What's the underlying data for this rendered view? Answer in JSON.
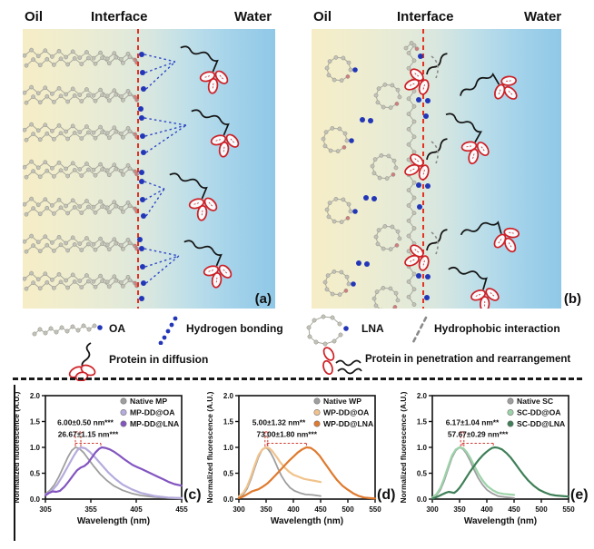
{
  "figure": {
    "panels": [
      {
        "label": "(a)",
        "regions": {
          "oil": "Oil",
          "interface": "Interface",
          "water": "Water"
        }
      },
      {
        "label": "(b)",
        "regions": {
          "oil": "Oil",
          "interface": "Interface",
          "water": "Water"
        }
      }
    ],
    "legend_a": [
      {
        "icon": "oa-molecule-icon",
        "label": "OA"
      },
      {
        "icon": "hydrogen-bonding-icon",
        "label": "Hydrogen bonding"
      },
      {
        "icon": "protein-diffusion-icon",
        "label": "Protein in diffusion"
      }
    ],
    "legend_b": [
      {
        "icon": "lna-molecule-icon",
        "label": "LNA"
      },
      {
        "icon": "hydrophobic-interaction-icon",
        "label": "Hydrophobic interaction"
      },
      {
        "icon": "protein-penetration-icon",
        "label": "Protein in penetration and rearrangement"
      }
    ],
    "colors": {
      "oil_bg": "#f6edc6",
      "water_bg": "#8fc8e7",
      "interface_line": "#e23222",
      "hydrogen_bond_blue": "#2336b8",
      "hydrophobic_gray": "#8a8a8a",
      "protein_red": "#ce2026",
      "molecule_gray": "#c2c2b8"
    }
  },
  "chart_data": [
    {
      "type": "line",
      "panel_label": "(c)",
      "xlabel": "Wavelength (nm)",
      "ylabel": "Normalized fluorescence (A.U.)",
      "xlim": [
        305,
        455
      ],
      "ylim": [
        0,
        2.0
      ],
      "xticks": [
        305,
        355,
        405,
        455
      ],
      "yticks": [
        "0.0",
        "0.5",
        "1.0",
        "1.5",
        "2.0"
      ],
      "legend_position": "top-right",
      "series": [
        {
          "name": "Native MP",
          "color": "#9e9e9e",
          "points": [
            [
              305,
              0.1
            ],
            [
              310,
              0.17
            ],
            [
              315,
              0.28
            ],
            [
              320,
              0.44
            ],
            [
              325,
              0.63
            ],
            [
              330,
              0.82
            ],
            [
              334,
              0.94
            ],
            [
              338,
              1.0
            ],
            [
              342,
              0.98
            ],
            [
              347,
              0.9
            ],
            [
              352,
              0.78
            ],
            [
              358,
              0.64
            ],
            [
              365,
              0.49
            ],
            [
              372,
              0.37
            ],
            [
              380,
              0.26
            ],
            [
              390,
              0.17
            ],
            [
              400,
              0.11
            ],
            [
              410,
              0.07
            ],
            [
              425,
              0.04
            ],
            [
              440,
              0.02
            ],
            [
              455,
              0.01
            ]
          ]
        },
        {
          "name": "MP-DD@OA",
          "color": "#b5abdd",
          "points": [
            [
              305,
              0.08
            ],
            [
              312,
              0.16
            ],
            [
              318,
              0.28
            ],
            [
              324,
              0.45
            ],
            [
              330,
              0.64
            ],
            [
              336,
              0.83
            ],
            [
              340,
              0.94
            ],
            [
              344,
              1.0
            ],
            [
              349,
              0.98
            ],
            [
              354,
              0.91
            ],
            [
              360,
              0.8
            ],
            [
              367,
              0.66
            ],
            [
              374,
              0.52
            ],
            [
              382,
              0.39
            ],
            [
              390,
              0.28
            ],
            [
              400,
              0.19
            ],
            [
              410,
              0.12
            ],
            [
              425,
              0.06
            ],
            [
              440,
              0.03
            ],
            [
              455,
              0.02
            ]
          ]
        },
        {
          "name": "MP-DD@LNA",
          "color": "#8355c0",
          "points": [
            [
              305,
              0.07
            ],
            [
              309,
              0.12
            ],
            [
              313,
              0.15
            ],
            [
              317,
              0.14
            ],
            [
              321,
              0.16
            ],
            [
              326,
              0.24
            ],
            [
              331,
              0.35
            ],
            [
              336,
              0.47
            ],
            [
              340,
              0.56
            ],
            [
              344,
              0.61
            ],
            [
              348,
              0.64
            ],
            [
              352,
              0.7
            ],
            [
              356,
              0.8
            ],
            [
              360,
              0.9
            ],
            [
              364,
              0.97
            ],
            [
              367,
              1.0
            ],
            [
              371,
              0.99
            ],
            [
              376,
              0.96
            ],
            [
              381,
              0.91
            ],
            [
              386,
              0.85
            ],
            [
              391,
              0.78
            ],
            [
              396,
              0.72
            ],
            [
              401,
              0.66
            ],
            [
              406,
              0.62
            ],
            [
              411,
              0.58
            ],
            [
              417,
              0.53
            ],
            [
              423,
              0.48
            ],
            [
              429,
              0.43
            ],
            [
              435,
              0.38
            ],
            [
              441,
              0.33
            ],
            [
              447,
              0.29
            ],
            [
              455,
              0.26
            ]
          ]
        }
      ],
      "annotations": [
        {
          "text": "6.00±0.50 nm***",
          "x1": 338,
          "x2": 344,
          "line_y": 1.3,
          "text_y": 1.43
        },
        {
          "text": "26.67±1.15 nm***",
          "x1": 338,
          "x2": 366,
          "line_y": 1.08,
          "text_y": 1.2
        }
      ]
    },
    {
      "type": "line",
      "panel_label": "(d)",
      "xlabel": "Wavelength (nm)",
      "ylabel": "Normalized fluorescence (A.U.)",
      "xlim": [
        300,
        550
      ],
      "ylim": [
        0,
        2.0
      ],
      "xticks": [
        300,
        350,
        400,
        450,
        500,
        550
      ],
      "yticks": [
        "0.0",
        "0.5",
        "1.0",
        "1.5",
        "2.0"
      ],
      "legend_position": "top-right",
      "series": [
        {
          "name": "Native WP",
          "color": "#9e9e9e",
          "points": [
            [
              300,
              0.03
            ],
            [
              308,
              0.09
            ],
            [
              315,
              0.2
            ],
            [
              322,
              0.38
            ],
            [
              329,
              0.6
            ],
            [
              336,
              0.81
            ],
            [
              342,
              0.94
            ],
            [
              348,
              1.0
            ],
            [
              353,
              0.97
            ],
            [
              358,
              0.9
            ],
            [
              364,
              0.78
            ],
            [
              371,
              0.61
            ],
            [
              378,
              0.45
            ],
            [
              386,
              0.32
            ],
            [
              394,
              0.22
            ],
            [
              402,
              0.16
            ],
            [
              412,
              0.12
            ],
            [
              422,
              0.09
            ],
            [
              435,
              0.08
            ],
            [
              450,
              0.06
            ]
          ]
        },
        {
          "name": "WP-DD@OA",
          "color": "#f1c38c",
          "points": [
            [
              300,
              0.05
            ],
            [
              308,
              0.12
            ],
            [
              315,
              0.24
            ],
            [
              322,
              0.43
            ],
            [
              329,
              0.65
            ],
            [
              336,
              0.85
            ],
            [
              343,
              0.96
            ],
            [
              350,
              1.0
            ],
            [
              356,
              0.98
            ],
            [
              362,
              0.92
            ],
            [
              369,
              0.82
            ],
            [
              376,
              0.71
            ],
            [
              384,
              0.61
            ],
            [
              392,
              0.53
            ],
            [
              400,
              0.47
            ],
            [
              410,
              0.43
            ],
            [
              420,
              0.39
            ],
            [
              430,
              0.37
            ],
            [
              440,
              0.35
            ],
            [
              450,
              0.33
            ]
          ]
        },
        {
          "name": "WP-DD@LNA",
          "color": "#df7a2e",
          "points": [
            [
              300,
              0.02
            ],
            [
              308,
              0.05
            ],
            [
              316,
              0.1
            ],
            [
              324,
              0.15
            ],
            [
              330,
              0.17
            ],
            [
              336,
              0.19
            ],
            [
              344,
              0.24
            ],
            [
              352,
              0.3
            ],
            [
              360,
              0.38
            ],
            [
              368,
              0.47
            ],
            [
              376,
              0.56
            ],
            [
              384,
              0.65
            ],
            [
              392,
              0.74
            ],
            [
              400,
              0.82
            ],
            [
              408,
              0.9
            ],
            [
              416,
              0.96
            ],
            [
              424,
              1.0
            ],
            [
              432,
              0.99
            ],
            [
              440,
              0.93
            ],
            [
              448,
              0.84
            ],
            [
              456,
              0.72
            ],
            [
              464,
              0.6
            ],
            [
              472,
              0.48
            ],
            [
              480,
              0.37
            ],
            [
              490,
              0.26
            ],
            [
              500,
              0.18
            ],
            [
              510,
              0.11
            ],
            [
              520,
              0.06
            ],
            [
              530,
              0.03
            ],
            [
              540,
              0.02
            ],
            [
              550,
              0.01
            ]
          ]
        }
      ],
      "annotations": [
        {
          "text": "5.00±1.32 nm**",
          "x1": 348,
          "x2": 353,
          "line_y": 1.3,
          "text_y": 1.43
        },
        {
          "text": "73.00±1.80 nm***",
          "x1": 352,
          "x2": 424,
          "line_y": 1.08,
          "text_y": 1.2
        }
      ]
    },
    {
      "type": "line",
      "panel_label": "(e)",
      "xlabel": "Wavelength (nm)",
      "ylabel": "Normalized fluorescence (A.U.)",
      "xlim": [
        300,
        550
      ],
      "ylim": [
        0,
        2.0
      ],
      "xticks": [
        300,
        350,
        400,
        450,
        500,
        550
      ],
      "yticks": [
        "0.0",
        "0.5",
        "1.0",
        "1.5",
        "2.0"
      ],
      "legend_position": "top-right",
      "series": [
        {
          "name": "Native SC",
          "color": "#9e9e9e",
          "points": [
            [
              300,
              0.02
            ],
            [
              308,
              0.08
            ],
            [
              315,
              0.18
            ],
            [
              322,
              0.36
            ],
            [
              329,
              0.58
            ],
            [
              336,
              0.8
            ],
            [
              343,
              0.94
            ],
            [
              350,
              1.0
            ],
            [
              356,
              0.97
            ],
            [
              362,
              0.89
            ],
            [
              369,
              0.75
            ],
            [
              376,
              0.58
            ],
            [
              384,
              0.41
            ],
            [
              392,
              0.28
            ],
            [
              400,
              0.18
            ],
            [
              410,
              0.11
            ],
            [
              420,
              0.06
            ],
            [
              432,
              0.04
            ],
            [
              442,
              0.03
            ],
            [
              450,
              0.02
            ]
          ]
        },
        {
          "name": "SC-DD@OA",
          "color": "#9cd3a9",
          "points": [
            [
              300,
              0.03
            ],
            [
              308,
              0.1
            ],
            [
              315,
              0.22
            ],
            [
              322,
              0.41
            ],
            [
              329,
              0.63
            ],
            [
              336,
              0.84
            ],
            [
              343,
              0.96
            ],
            [
              350,
              1.0
            ],
            [
              357,
              0.98
            ],
            [
              363,
              0.91
            ],
            [
              370,
              0.79
            ],
            [
              377,
              0.64
            ],
            [
              385,
              0.48
            ],
            [
              393,
              0.35
            ],
            [
              401,
              0.25
            ],
            [
              411,
              0.17
            ],
            [
              421,
              0.12
            ],
            [
              431,
              0.1
            ],
            [
              441,
              0.09
            ],
            [
              450,
              0.08
            ]
          ]
        },
        {
          "name": "SC-DD@LNA",
          "color": "#3e7f57",
          "points": [
            [
              300,
              0.01
            ],
            [
              306,
              0.03
            ],
            [
              312,
              0.06
            ],
            [
              318,
              0.09
            ],
            [
              324,
              0.12
            ],
            [
              330,
              0.14
            ],
            [
              335,
              0.13
            ],
            [
              340,
              0.12
            ],
            [
              345,
              0.16
            ],
            [
              350,
              0.22
            ],
            [
              356,
              0.31
            ],
            [
              362,
              0.41
            ],
            [
              368,
              0.51
            ],
            [
              374,
              0.6
            ],
            [
              380,
              0.69
            ],
            [
              386,
              0.77
            ],
            [
              392,
              0.84
            ],
            [
              398,
              0.9
            ],
            [
              404,
              0.95
            ],
            [
              410,
              0.99
            ],
            [
              415,
              1.0
            ],
            [
              421,
              0.99
            ],
            [
              428,
              0.96
            ],
            [
              436,
              0.89
            ],
            [
              444,
              0.8
            ],
            [
              452,
              0.69
            ],
            [
              460,
              0.57
            ],
            [
              468,
              0.46
            ],
            [
              476,
              0.36
            ],
            [
              486,
              0.26
            ],
            [
              496,
              0.18
            ],
            [
              506,
              0.13
            ],
            [
              516,
              0.09
            ],
            [
              526,
              0.07
            ],
            [
              538,
              0.06
            ],
            [
              550,
              0.05
            ]
          ]
        }
      ],
      "annotations": [
        {
          "text": "6.17±1.04 nm**",
          "x1": 352,
          "x2": 358,
          "line_y": 1.3,
          "text_y": 1.43
        },
        {
          "text": "57.67±0.29 nm***",
          "x1": 355,
          "x2": 412,
          "line_y": 1.08,
          "text_y": 1.2
        }
      ]
    }
  ]
}
